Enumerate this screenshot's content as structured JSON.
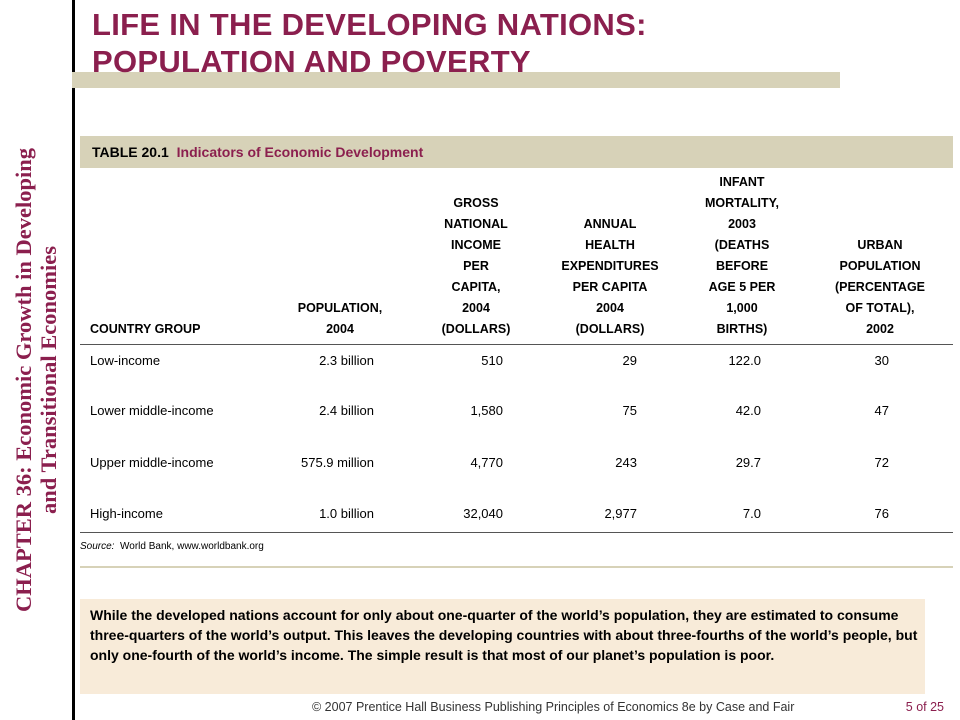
{
  "sidebar": {
    "line1": "CHAPTER 36:  Economic Growth in Developing",
    "line2": "and Transitional Economies"
  },
  "title": {
    "line1": "LIFE IN THE DEVELOPING NATIONS:",
    "line2": "POPULATION AND POVERTY"
  },
  "table": {
    "label": "TABLE 20.1",
    "caption": "Indicators of Economic Development",
    "headers": [
      [
        "COUNTRY GROUP"
      ],
      [
        "POPULATION,",
        "2004"
      ],
      [
        "GROSS",
        "NATIONAL",
        "INCOME",
        "PER",
        "CAPITA,",
        "2004",
        "(DOLLARS)"
      ],
      [
        "ANNUAL",
        "HEALTH",
        "EXPENDITURES",
        "PER CAPITA",
        "2004",
        "(DOLLARS)"
      ],
      [
        "INFANT",
        "MORTALITY,",
        "2003",
        "(DEATHS",
        "BEFORE",
        "AGE 5 PER",
        "1,000",
        "BIRTHS)"
      ],
      [
        "URBAN",
        "POPULATION",
        "(PERCENTAGE",
        "OF TOTAL),",
        "2002"
      ]
    ],
    "rows": [
      [
        "Low-income",
        "2.3 billion",
        "510",
        "29",
        "122.0",
        "30"
      ],
      [
        "Lower  middle-income",
        "2.4 billion",
        "1,580",
        "75",
        "42.0",
        "47"
      ],
      [
        "Upper  middle-income",
        "575.9  million",
        "4,770",
        "243",
        "29.7",
        "72"
      ],
      [
        "High-income",
        "1.0 billion",
        "32,040",
        "2,977",
        "7.0",
        "76"
      ]
    ],
    "source_label": "Source:",
    "source_text": "World Bank, www.worldbank.org"
  },
  "note": "While the developed nations account for only about one-quarter of the world’s population, they are estimated to consume three-quarters of the world’s output.  This leaves the developing countries with about three-fourths of the world’s people, but only one-fourth of the world’s income.  The simple result is that most of our planet’s population is poor.",
  "footer": "© 2007 Prentice Hall Business Publishing   Principles of Economics 8e by Case and Fair",
  "page": "5 of 25",
  "colors": {
    "accent": "#8b1f4e",
    "band": "#d7d2b8",
    "note_bg": "#f8ebd9"
  }
}
